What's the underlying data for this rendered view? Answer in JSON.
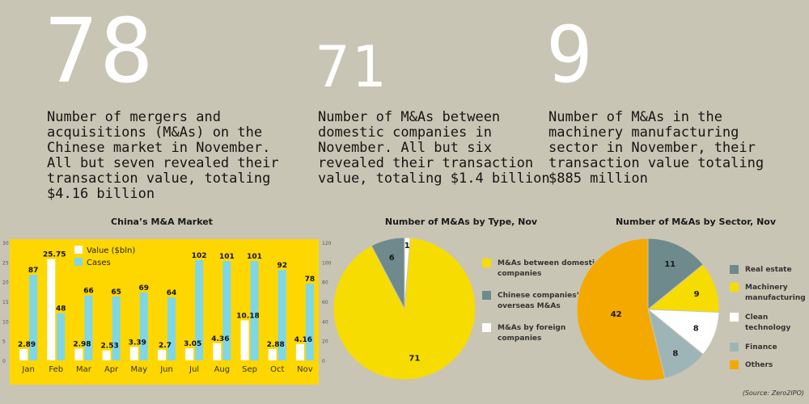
{
  "stats": [
    {
      "number": "78",
      "description": "Number of mergers and acquisitions (M&As) on the Chinese market in November. All but seven revealed their transaction value, totaling $4.16 billion"
    },
    {
      "number": "71",
      "description": "Number of M&As between domestic companies in November. All but six revealed their transaction value, totaling $1.4 billion"
    },
    {
      "number": "9",
      "description": "Number of M&As in the machinery manufacturing sector in November, their transaction value totaling $885 million"
    }
  ],
  "source": "(Source: Zero2IPO)",
  "chart_data": [
    {
      "type": "bar",
      "title": "China’s M&A Market",
      "categories": [
        "Jan",
        "Feb",
        "Mar",
        "Apr",
        "May",
        "Jun",
        "Jul",
        "Aug",
        "Sep",
        "Oct",
        "Nov"
      ],
      "series": [
        {
          "name": "Value ($bln)",
          "axis": "left",
          "color": "#ffffff",
          "values": [
            2.89,
            25.75,
            2.98,
            2.53,
            3.39,
            2.7,
            3.05,
            4.36,
            10.18,
            2.88,
            4.16
          ],
          "labels": [
            "2.89",
            "25.75",
            "2.98",
            "2.53",
            "3.39",
            "2.7",
            "3.05",
            "4.36",
            "10.18",
            "2.88",
            "4.16"
          ]
        },
        {
          "name": "Cases",
          "axis": "right",
          "color": "#7fd6e6",
          "values": [
            87,
            48,
            66,
            65,
            69,
            64,
            102,
            101,
            101,
            92,
            78
          ],
          "labels": [
            "87",
            "48",
            "66",
            "65",
            "69",
            "64",
            "102",
            "101",
            "101",
            "92",
            "78"
          ]
        }
      ],
      "ylim_left": [
        0,
        30
      ],
      "ylim_right": [
        0,
        120
      ],
      "left_ticks": [
        "0",
        "5",
        "10",
        "15",
        "20",
        "25",
        "30"
      ],
      "right_ticks": [
        "0",
        "20",
        "40",
        "60",
        "80",
        "100",
        "120"
      ],
      "background": "#ffd700",
      "grid": false,
      "legend": "top"
    },
    {
      "type": "pie",
      "title": "Number of M&As by Type, Nov",
      "slices": [
        {
          "label": "M&As between domestic companies",
          "value": 71,
          "color": "#f6dc00",
          "text": "71"
        },
        {
          "label": "Chinese companies’ overseas M&As",
          "value": 6,
          "color": "#6e8a8c",
          "text": "6"
        },
        {
          "label": "M&As by foreign companies",
          "value": 1,
          "color": "#ffffff",
          "text": "1"
        }
      ],
      "legend": "right"
    },
    {
      "type": "pie",
      "title": "Number of M&As by Sector, Nov",
      "slices": [
        {
          "label": "Real estate",
          "value": 11,
          "color": "#6e8a8c",
          "text": "11"
        },
        {
          "label": "Machinery manufacturing",
          "value": 9,
          "color": "#f6dc00",
          "text": "9"
        },
        {
          "label": "Clean technology",
          "value": 8,
          "color": "#ffffff",
          "text": "8"
        },
        {
          "label": "Finance",
          "value": 8,
          "color": "#9eb5b8",
          "text": "8"
        },
        {
          "label": "Others",
          "value": 42,
          "color": "#f4a900",
          "text": "42"
        }
      ],
      "legend": "right"
    }
  ]
}
